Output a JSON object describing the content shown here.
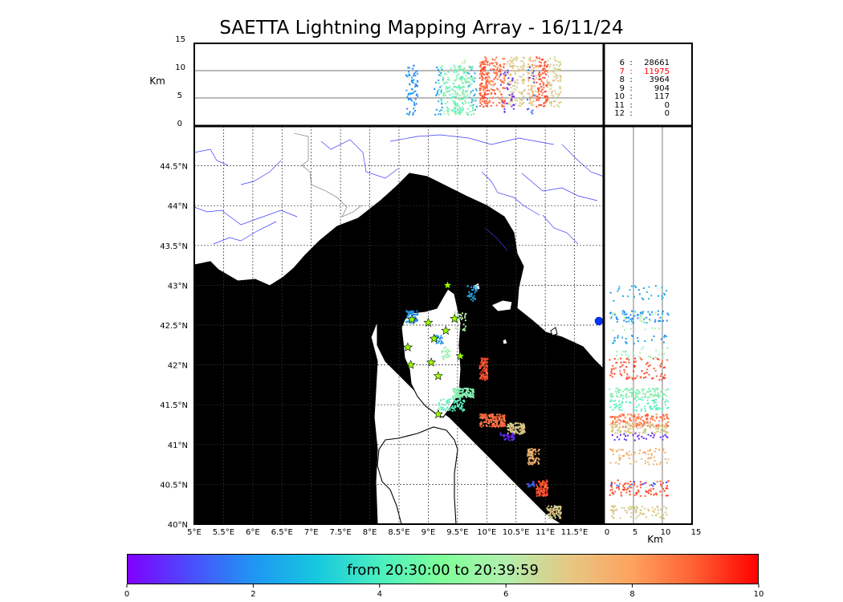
{
  "title": "SAETTA Lightning Mapping Array - 16/11/24",
  "top_panel": {
    "ylabel": "Km",
    "yticks": [
      "15",
      "10",
      "5",
      "0"
    ]
  },
  "right_panel": {
    "xlabel": "Km",
    "xticks": [
      "0",
      "5",
      "10",
      "15"
    ]
  },
  "map": {
    "lon_ticks": [
      "5°E",
      "5.5°E",
      "6°E",
      "6.5°E",
      "7°E",
      "7.5°E",
      "8°E",
      "8.5°E",
      "9°E",
      "9.5°E",
      "10°E",
      "10.5°E",
      "11°E",
      "11.5°E"
    ],
    "lat_ticks": [
      "44.5°N",
      "44°N",
      "43.5°N",
      "43°N",
      "42.5°N",
      "42°N",
      "41.5°N",
      "41°N",
      "40.5°N",
      "40°N"
    ],
    "extent": {
      "lon": [
        5,
        12
      ],
      "lat": [
        40,
        45
      ]
    },
    "sea_color": "#b7ecfc",
    "river_color": "#3b3bff",
    "station_marker": "star",
    "station_color": "#99ff00",
    "stations": [
      {
        "lon": 9.33,
        "lat": 43.0
      },
      {
        "lon": 8.72,
        "lat": 42.57
      },
      {
        "lon": 9.0,
        "lat": 42.53
      },
      {
        "lon": 9.45,
        "lat": 42.58
      },
      {
        "lon": 9.3,
        "lat": 42.43
      },
      {
        "lon": 9.1,
        "lat": 42.33
      },
      {
        "lon": 8.65,
        "lat": 42.22
      },
      {
        "lon": 9.55,
        "lat": 42.11
      },
      {
        "lon": 9.05,
        "lat": 42.03
      },
      {
        "lon": 8.7,
        "lat": 42.0
      },
      {
        "lon": 9.17,
        "lat": 41.86
      },
      {
        "lon": 9.17,
        "lat": 41.38
      }
    ]
  },
  "counts": [
    {
      "level": "6",
      "sep": ":",
      "value": "28661",
      "color": "#000000"
    },
    {
      "level": "7",
      "sep": ":",
      "value": "11975",
      "color": "#ff0000"
    },
    {
      "level": "8",
      "sep": ":",
      "value": "3964",
      "color": "#000000"
    },
    {
      "level": "9",
      "sep": ":",
      "value": "904",
      "color": "#000000"
    },
    {
      "level": "10",
      "sep": ":",
      "value": "117",
      "color": "#000000"
    },
    {
      "level": "11",
      "sep": ":",
      "value": "0",
      "color": "#000000"
    },
    {
      "level": "12",
      "sep": ":",
      "value": "0",
      "color": "#000000"
    }
  ],
  "colorbar": {
    "label": "from 20:30:00 to 20:39:59",
    "ticks": [
      "0",
      "2",
      "4",
      "6",
      "8",
      "10"
    ],
    "range": [
      0,
      10
    ],
    "colors": [
      "#7f00ff",
      "#1f96f3",
      "#4aefc0",
      "#b2efad",
      "#ffa25f",
      "#ff0000"
    ]
  }
}
